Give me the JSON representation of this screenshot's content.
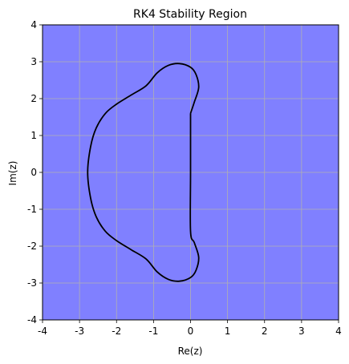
{
  "chart_data": {
    "type": "line",
    "title": "RK4 Stability Region",
    "xlabel": "Re(z)",
    "ylabel": "Im(z)",
    "xlim": [
      -4,
      4
    ],
    "ylim": [
      -4,
      4
    ],
    "x_ticks": [
      "-4",
      "-3",
      "-2",
      "-1",
      "0",
      "1",
      "2",
      "3",
      "4"
    ],
    "y_ticks": [
      "-4",
      "-3",
      "-2",
      "-1",
      "0",
      "1",
      "2",
      "3",
      "4"
    ],
    "grid": true,
    "fill_color": "#8080ff",
    "grid_color": "#b0b0b0",
    "line_color": "#000000",
    "series": [
      {
        "points": [
          [
            0.0,
            1.6
          ],
          [
            0.1,
            1.9
          ],
          [
            0.22,
            2.3
          ],
          [
            0.15,
            2.65
          ],
          [
            0.0,
            2.85
          ],
          [
            -0.3,
            2.95
          ],
          [
            -0.6,
            2.9
          ],
          [
            -0.9,
            2.7
          ],
          [
            -1.2,
            2.35
          ],
          [
            -1.6,
            2.1
          ],
          [
            -2.0,
            1.85
          ],
          [
            -2.3,
            1.6
          ],
          [
            -2.55,
            1.2
          ],
          [
            -2.7,
            0.7
          ],
          [
            -2.78,
            0.0
          ],
          [
            -2.7,
            -0.7
          ],
          [
            -2.55,
            -1.2
          ],
          [
            -2.3,
            -1.6
          ],
          [
            -2.0,
            -1.85
          ],
          [
            -1.6,
            -2.1
          ],
          [
            -1.2,
            -2.35
          ],
          [
            -0.9,
            -2.7
          ],
          [
            -0.6,
            -2.9
          ],
          [
            -0.3,
            -2.95
          ],
          [
            0.0,
            -2.85
          ],
          [
            0.15,
            -2.65
          ],
          [
            0.22,
            -2.3
          ],
          [
            0.1,
            -1.9
          ],
          [
            0.0,
            -1.6
          ],
          [
            0.0,
            0.0
          ],
          [
            0.0,
            1.6
          ]
        ]
      }
    ]
  }
}
